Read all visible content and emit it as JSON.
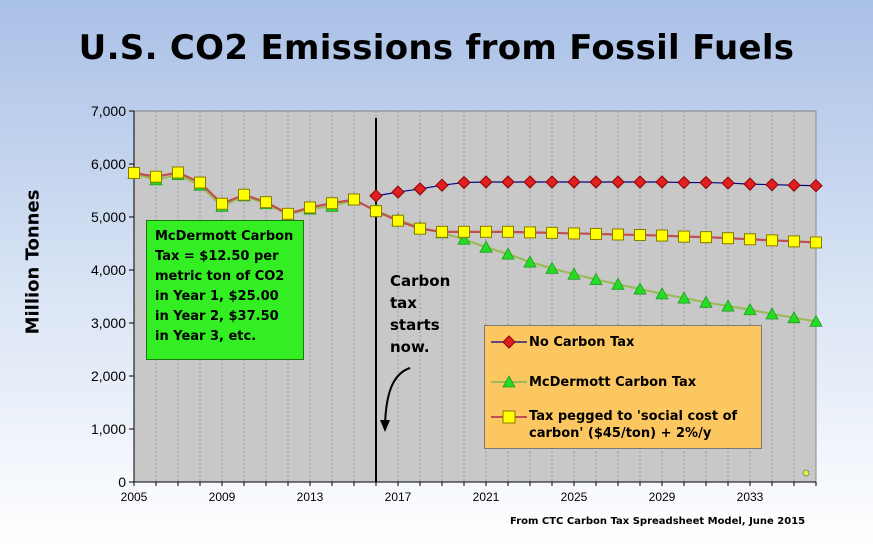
{
  "title": "U.S. CO2 Emissions from Fossil Fuels",
  "source_note": "From CTC Carbon Tax Spreadsheet Model, June 2015",
  "tax_box_text": "McDermott Carbon Tax = $12.50 per metric ton of CO2 in Year 1, $25.00 in Year 2, $37.50 in Year 3, etc.",
  "start_note": "Carbon tax starts now.",
  "chart_data": {
    "type": "line",
    "title": "U.S. CO2 Emissions from Fossil Fuels",
    "ylabel": "Million Tonnes",
    "xlabel": "",
    "xlim": [
      2005,
      2036
    ],
    "ylim": [
      0,
      7000
    ],
    "x_tick_labels": [
      "2005",
      "2009",
      "2013",
      "2017",
      "2021",
      "2025",
      "2029",
      "2033"
    ],
    "y_tick_labels": [
      "0",
      "1,000",
      "2,000",
      "3,000",
      "4,000",
      "5,000",
      "6,000",
      "7,000"
    ],
    "policy_start_year": 2016,
    "legend_position": "lower-right",
    "grid": "vertical",
    "series": [
      {
        "name": "No Carbon Tax",
        "color": "#e02020",
        "marker": "diamond",
        "x": [
          2016,
          2017,
          2018,
          2019,
          2020,
          2021,
          2022,
          2023,
          2024,
          2025,
          2026,
          2027,
          2028,
          2029,
          2030,
          2031,
          2032,
          2033,
          2034,
          2035,
          2036
        ],
        "values": [
          5400,
          5470,
          5530,
          5600,
          5650,
          5660,
          5660,
          5660,
          5660,
          5660,
          5660,
          5660,
          5660,
          5660,
          5650,
          5650,
          5640,
          5620,
          5610,
          5600,
          5590
        ]
      },
      {
        "name": "McDermott Carbon Tax",
        "color": "#22dd22",
        "marker": "triangle",
        "x": [
          2005,
          2006,
          2007,
          2008,
          2009,
          2010,
          2011,
          2012,
          2013,
          2014,
          2015,
          2016,
          2017,
          2018,
          2019,
          2020,
          2021,
          2022,
          2023,
          2024,
          2025,
          2026,
          2027,
          2028,
          2029,
          2030,
          2031,
          2032,
          2033,
          2034,
          2035,
          2036
        ],
        "values": [
          5820,
          5700,
          5800,
          5600,
          5200,
          5400,
          5250,
          5050,
          5150,
          5200,
          5320,
          5120,
          4950,
          4800,
          4700,
          4580,
          4430,
          4300,
          4150,
          4030,
          3920,
          3820,
          3730,
          3640,
          3550,
          3470,
          3390,
          3320,
          3250,
          3170,
          3100,
          3030
        ]
      },
      {
        "name": "Tax pegged to 'social cost of carbon' ($45/ton) + 2%/y",
        "color": "#ffff00",
        "line_color": "#c0504d",
        "marker": "square",
        "x": [
          2005,
          2006,
          2007,
          2008,
          2009,
          2010,
          2011,
          2012,
          2013,
          2014,
          2015,
          2016,
          2017,
          2018,
          2019,
          2020,
          2021,
          2022,
          2023,
          2024,
          2025,
          2026,
          2027,
          2028,
          2029,
          2030,
          2031,
          2032,
          2033,
          2034,
          2035,
          2036
        ],
        "values": [
          5830,
          5760,
          5840,
          5650,
          5250,
          5420,
          5280,
          5060,
          5180,
          5260,
          5330,
          5110,
          4930,
          4780,
          4720,
          4720,
          4720,
          4720,
          4710,
          4700,
          4690,
          4680,
          4670,
          4660,
          4650,
          4630,
          4620,
          4600,
          4580,
          4560,
          4540,
          4520
        ]
      }
    ]
  }
}
